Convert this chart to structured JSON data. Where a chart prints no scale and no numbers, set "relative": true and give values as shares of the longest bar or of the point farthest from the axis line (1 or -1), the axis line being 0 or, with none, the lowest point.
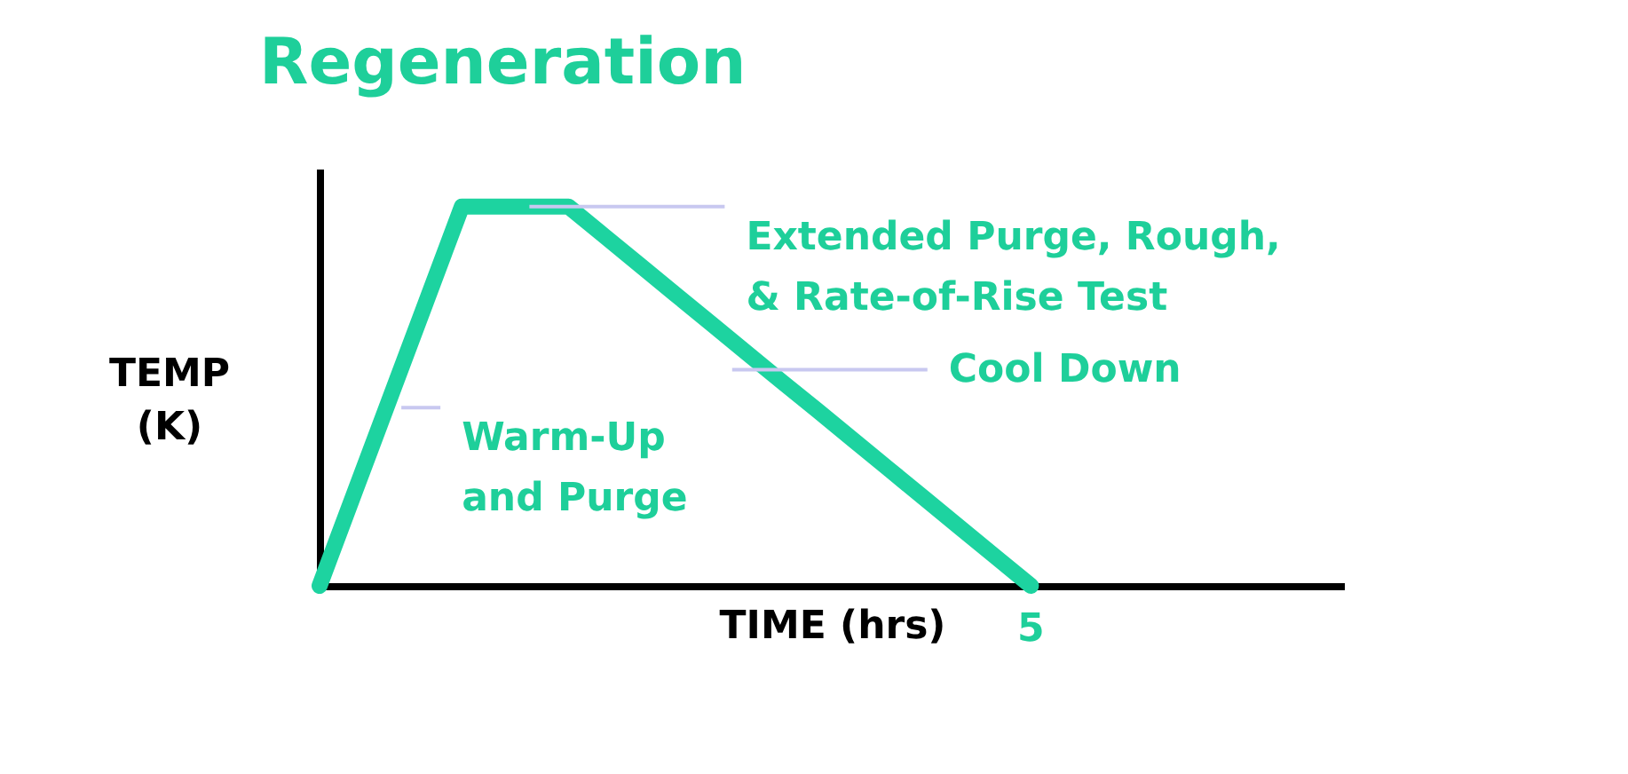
{
  "chart_data": {
    "type": "line",
    "title": "Regeneration",
    "xlabel": "TIME (hrs)",
    "ylabel": "TEMP (K)",
    "relative": true,
    "categories": [
      null,
      null,
      null,
      null,
      null,
      null,
      null,
      null,
      null,
      null,
      null,
      null,
      null,
      null,
      null,
      null,
      null,
      null,
      null,
      null,
      null
    ],
    "series": [
      {
        "color": "#1dd3a0",
        "values": [
          0,
          0.25,
          0.5,
          0.75,
          1,
          1,
          1,
          1,
          0.923,
          0.846,
          0.769,
          0.692,
          0.615,
          0.538,
          0.462,
          0.385,
          0.308,
          0.231,
          0.154,
          0.077,
          0
        ]
      }
    ],
    "annotations": [
      "Warm-Up and Purge",
      "Extended Purge, Rough, & Rate-of-Rise Test",
      "Cool Down",
      "5"
    ]
  }
}
